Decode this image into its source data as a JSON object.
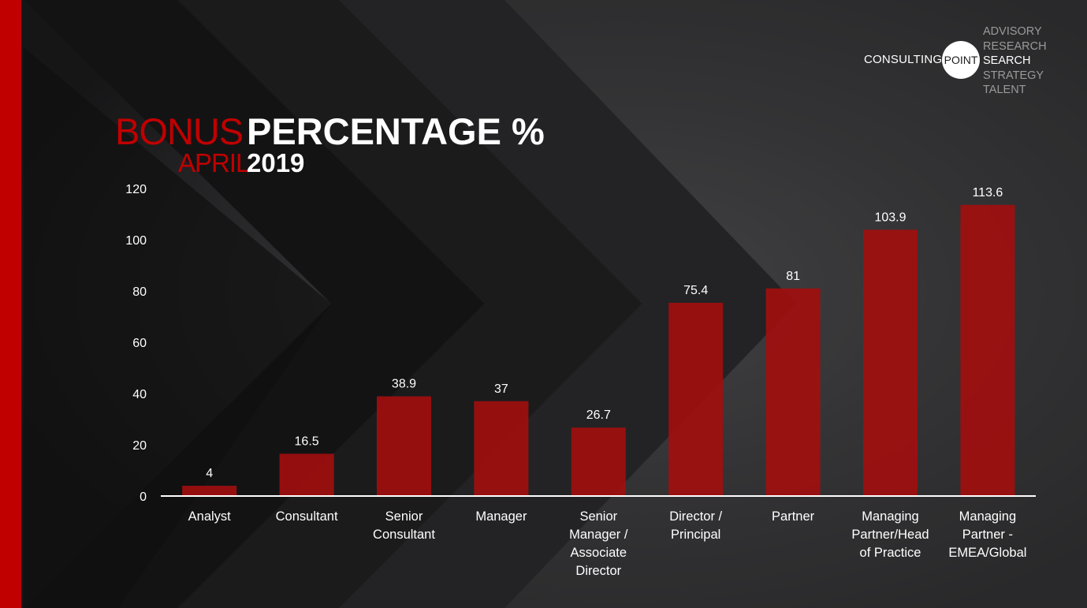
{
  "brand": {
    "name": "CONSULTING",
    "circle_text": "POINT",
    "services": [
      "ADVISORY",
      "RESEARCH",
      "SEARCH",
      "STRATEGY",
      "TALENT"
    ],
    "highlighted_service": "SEARCH"
  },
  "title": {
    "word1": "BONUS",
    "word2": "PERCENTAGE %",
    "word3": "APRIL",
    "word4": "2019"
  },
  "colors": {
    "accent": "#c00000",
    "bar": "#a30e0e",
    "background": "#1c1c1d",
    "text": "#ffffff"
  },
  "chart_data": {
    "type": "bar",
    "categories": [
      "Analyst",
      "Consultant",
      "Senior Consultant",
      "Manager",
      "Senior Manager / Associate Director",
      "Director / Principal",
      "Partner",
      "Managing Partner/Head of Practice",
      "Managing Partner - EMEA/Global"
    ],
    "category_lines": [
      [
        "Analyst"
      ],
      [
        "Consultant"
      ],
      [
        "Senior",
        "Consultant"
      ],
      [
        "Manager"
      ],
      [
        "Senior",
        "Manager /",
        "Associate",
        "Director"
      ],
      [
        "Director /",
        "Principal"
      ],
      [
        "Partner"
      ],
      [
        "Managing",
        "Partner/Head",
        "of Practice"
      ],
      [
        "Managing",
        "Partner -",
        "EMEA/Global"
      ]
    ],
    "values": [
      4,
      16.5,
      38.9,
      37,
      26.7,
      75.4,
      81,
      103.9,
      113.6
    ],
    "value_labels": [
      "4",
      "16.5",
      "38.9",
      "37",
      "26.7",
      "75.4",
      "81",
      "103.9",
      "113.6"
    ],
    "ylim": [
      0,
      120
    ],
    "yticks": [
      0,
      20,
      40,
      60,
      80,
      100,
      120
    ],
    "grid": false,
    "legend": "none"
  }
}
